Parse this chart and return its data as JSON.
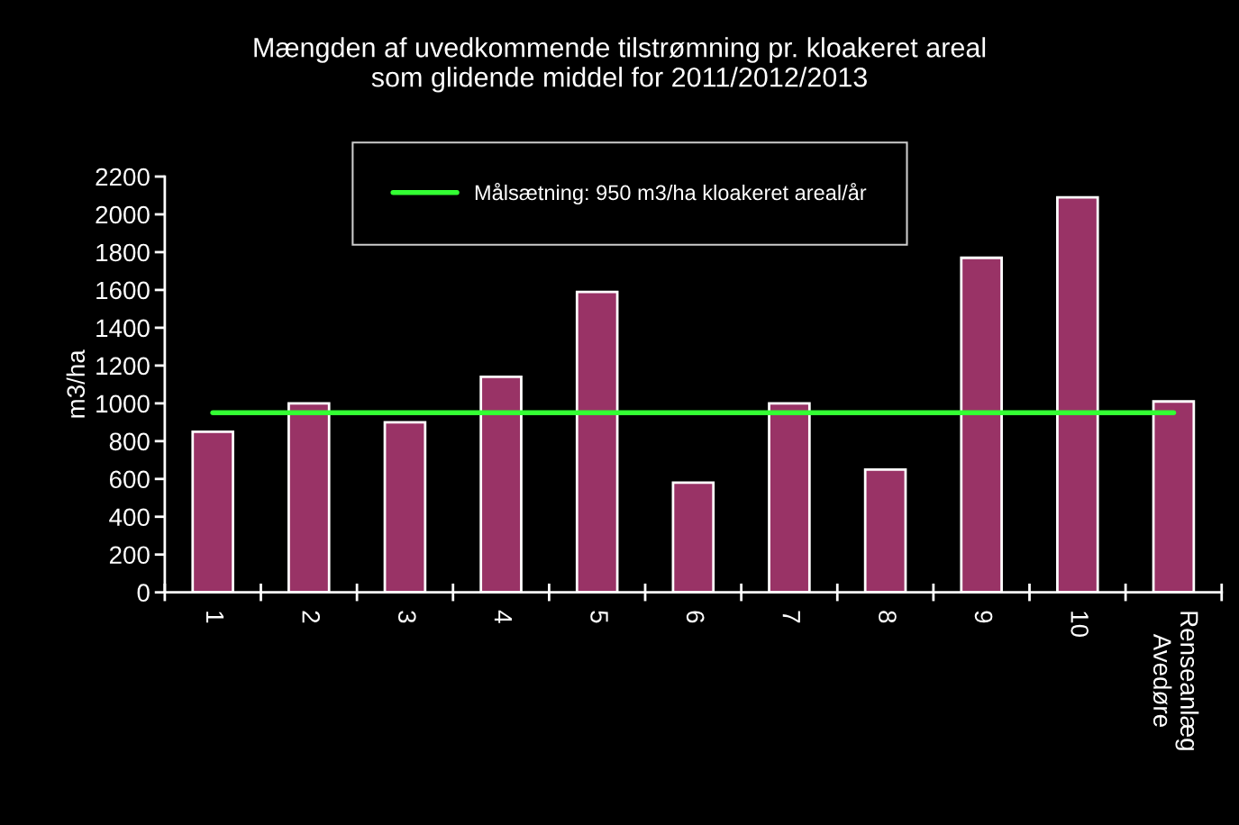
{
  "chart_data": {
    "type": "bar",
    "title": "Mængden af uvedkommende tilstrømning pr. kloakeret areal\nsom glidende middel for 2011/2012/2013",
    "ylabel": "m3/ha",
    "categories": [
      "1",
      "2",
      "3",
      "4",
      "5",
      "6",
      "7",
      "8",
      "9",
      "10",
      "Renseanlæg\nAvedøre"
    ],
    "values": [
      850,
      1000,
      900,
      1140,
      1590,
      580,
      1000,
      650,
      1770,
      2090,
      1010
    ],
    "color": "#993366",
    "ylim": [
      0,
      2200
    ],
    "yticks": [
      0,
      200,
      400,
      600,
      800,
      1000,
      1200,
      1400,
      1600,
      1800,
      2000,
      2200
    ],
    "ref_lines": [
      {
        "axis": "y",
        "value": 950,
        "label": "Målsætning: 950 m3/ha kloakeret areal/år",
        "color": "#33ff33",
        "line_style": "solid"
      }
    ],
    "grid": false,
    "legend": "top"
  }
}
